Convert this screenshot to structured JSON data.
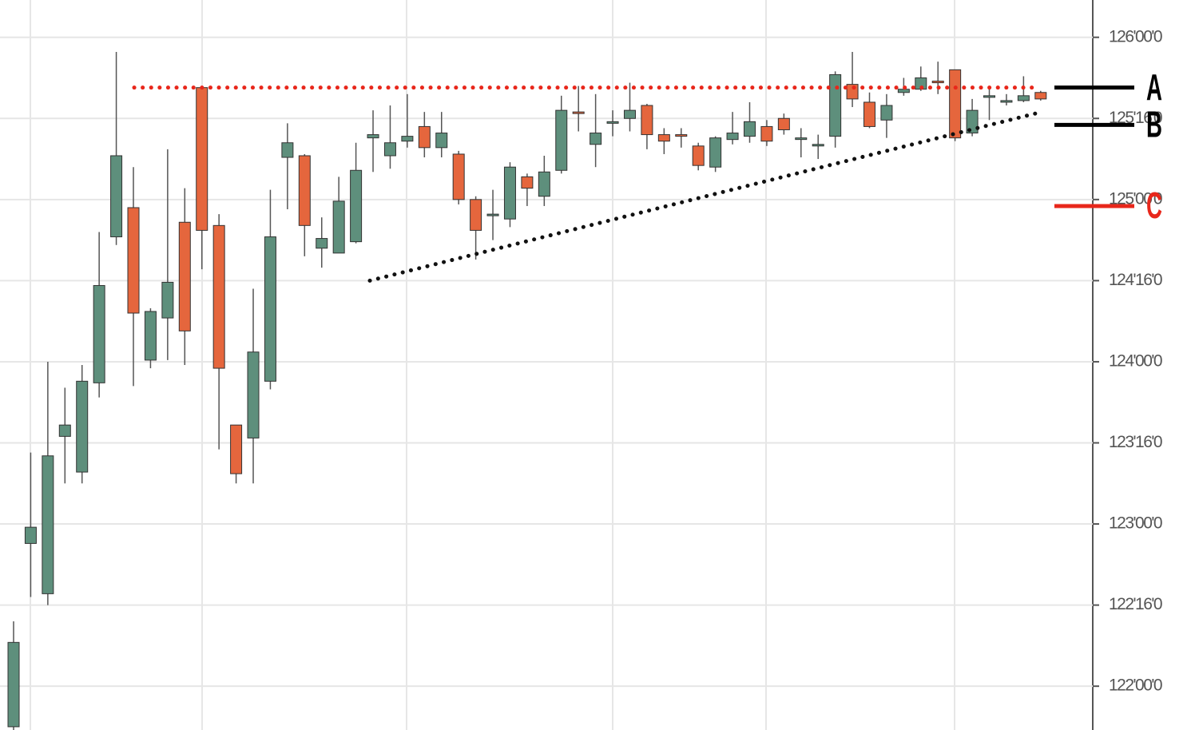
{
  "chart_data": {
    "type": "candlestick",
    "ylim": [
      121.73,
      126.23
    ],
    "yticks": [
      {
        "value": 126,
        "label": "126'00'0"
      },
      {
        "value": 125.5,
        "label": "125'16'0"
      },
      {
        "value": 125,
        "label": "125'00'0"
      },
      {
        "value": 124.5,
        "label": "124'16'0"
      },
      {
        "value": 124,
        "label": "124'00'0"
      },
      {
        "value": 123.5,
        "label": "123'16'0"
      },
      {
        "value": 123,
        "label": "123'00'0"
      },
      {
        "value": 122.5,
        "label": "122'16'0"
      },
      {
        "value": 122,
        "label": "122'00'0"
      }
    ],
    "grid": true,
    "up_color": "#5e8f7c",
    "down_color": "#e5663d",
    "open": [
      121.75,
      122.88,
      122.57,
      123.54,
      123.32,
      123.87,
      124.77,
      124.95,
      124.01,
      124.27,
      124.86,
      125.69,
      124.84,
      123.61,
      123.53,
      123.88,
      125.26,
      125.27,
      124.7,
      124.67,
      124.74,
      125.38,
      125.27,
      125.36,
      125.45,
      125.32,
      125.28,
      125.0,
      124.9,
      124.88,
      125.14,
      125.02,
      125.18,
      125.54,
      125.34,
      125.47,
      125.5,
      125.58,
      125.4,
      125.4,
      125.33,
      125.2,
      125.37,
      125.39,
      125.45,
      125.5,
      125.38,
      125.34,
      125.39,
      125.71,
      125.6,
      125.49,
      125.66,
      125.68,
      125.73,
      125.8,
      125.41,
      125.63,
      125.6,
      125.61,
      125.66
    ],
    "high": [
      122.4,
      123.44,
      124.0,
      123.84,
      123.98,
      124.8,
      125.91,
      125.2,
      124.33,
      125.31,
      125.07,
      125.7,
      124.91,
      123.61,
      124.45,
      125.06,
      125.47,
      125.28,
      124.89,
      125.14,
      125.35,
      125.55,
      125.58,
      125.65,
      125.54,
      125.54,
      125.3,
      125.02,
      125.06,
      125.23,
      125.16,
      125.27,
      125.64,
      125.7,
      125.65,
      125.55,
      125.72,
      125.59,
      125.44,
      125.44,
      125.35,
      125.39,
      125.54,
      125.6,
      125.49,
      125.53,
      125.44,
      125.4,
      125.79,
      125.91,
      125.66,
      125.65,
      125.75,
      125.82,
      125.85,
      125.8,
      125.62,
      125.7,
      125.65,
      125.76,
      125.67
    ],
    "low": [
      121.7,
      122.55,
      122.5,
      123.25,
      123.25,
      123.78,
      124.72,
      123.85,
      123.96,
      124.01,
      123.98,
      124.57,
      123.46,
      123.25,
      123.25,
      123.83,
      124.94,
      124.65,
      124.58,
      124.67,
      124.73,
      125.17,
      125.19,
      125.32,
      125.26,
      125.26,
      124.97,
      124.63,
      124.75,
      124.83,
      124.96,
      124.96,
      125.16,
      125.42,
      125.2,
      125.39,
      125.42,
      125.31,
      125.28,
      125.32,
      125.18,
      125.17,
      125.34,
      125.35,
      125.33,
      125.4,
      125.26,
      125.25,
      125.32,
      125.57,
      125.44,
      125.38,
      125.64,
      125.67,
      125.65,
      125.36,
      125.39,
      125.49,
      125.58,
      125.6,
      125.61
    ],
    "close": [
      122.27,
      122.98,
      123.42,
      123.61,
      123.88,
      124.47,
      125.27,
      124.3,
      124.31,
      124.49,
      124.19,
      124.81,
      123.96,
      123.31,
      124.06,
      124.77,
      125.35,
      124.84,
      124.76,
      124.99,
      125.18,
      125.4,
      125.35,
      125.39,
      125.32,
      125.41,
      125.0,
      124.81,
      124.91,
      125.2,
      125.07,
      125.17,
      125.55,
      125.53,
      125.41,
      125.48,
      125.55,
      125.4,
      125.36,
      125.39,
      125.21,
      125.38,
      125.41,
      125.48,
      125.36,
      125.43,
      125.38,
      125.34,
      125.77,
      125.62,
      125.45,
      125.58,
      125.68,
      125.75,
      125.72,
      125.38,
      125.55,
      125.64,
      125.61,
      125.64,
      125.62
    ],
    "resistance": {
      "value": 125.69,
      "color": "#e8271b"
    },
    "trendline": {
      "values": [
        124.5,
        125.53
      ],
      "color": "#111111"
    },
    "annotations": [
      {
        "label": "A",
        "value": 125.69,
        "color": "#000000"
      },
      {
        "label": "B",
        "value": 125.46,
        "color": "#000000"
      },
      {
        "label": "C",
        "value": 124.96,
        "color": "#e8271b"
      }
    ]
  }
}
